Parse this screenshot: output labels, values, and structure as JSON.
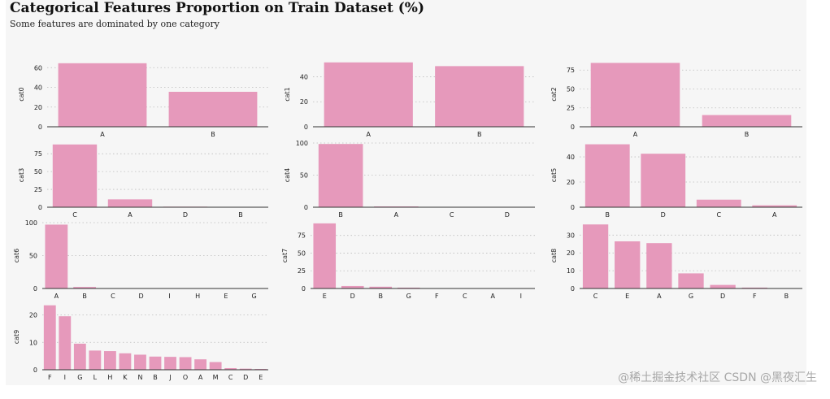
{
  "title": "Categorical Features Proportion on Train Dataset (%)",
  "subtitle": "Some features are dominated by one category",
  "watermark": "@稀土掘金技术社区 CSDN @黑夜汇生",
  "colors": {
    "bar": "#e699bb",
    "background": "#f6f6f6",
    "grid": "#bdbdbd",
    "axis": "#333333"
  },
  "chart_data": [
    {
      "type": "bar",
      "ylabel": "cat0",
      "categories": [
        "A",
        "B"
      ],
      "values": [
        64.5,
        35.5
      ],
      "ylim": [
        0,
        66
      ],
      "yticks": [
        0,
        20,
        40,
        60
      ]
    },
    {
      "type": "bar",
      "ylabel": "cat1",
      "categories": [
        "A",
        "B"
      ],
      "values": [
        51.5,
        48.5
      ],
      "ylim": [
        0,
        52
      ],
      "yticks": [
        0,
        20,
        40
      ]
    },
    {
      "type": "bar",
      "ylabel": "cat2",
      "categories": [
        "A",
        "B"
      ],
      "values": [
        84.5,
        15.5
      ],
      "ylim": [
        0,
        86
      ],
      "yticks": [
        0,
        25,
        50,
        75
      ]
    },
    {
      "type": "bar",
      "ylabel": "cat3",
      "categories": [
        "C",
        "A",
        "D",
        "B"
      ],
      "values": [
        88,
        11,
        0.8,
        0.2
      ],
      "ylim": [
        0,
        90
      ],
      "yticks": [
        0,
        25,
        50,
        75
      ]
    },
    {
      "type": "bar",
      "ylabel": "cat4",
      "categories": [
        "B",
        "A",
        "C",
        "D"
      ],
      "values": [
        98.5,
        1.2,
        0.2,
        0.1
      ],
      "ylim": [
        0,
        100
      ],
      "yticks": [
        0,
        50,
        100
      ]
    },
    {
      "type": "bar",
      "ylabel": "cat5",
      "categories": [
        "B",
        "D",
        "C",
        "A"
      ],
      "values": [
        50,
        42.5,
        6,
        1.5
      ],
      "ylim": [
        0,
        51
      ],
      "yticks": [
        0,
        20,
        40
      ]
    },
    {
      "type": "bar",
      "ylabel": "cat6",
      "categories": [
        "A",
        "B",
        "C",
        "D",
        "I",
        "H",
        "E",
        "G"
      ],
      "values": [
        97,
        2.3,
        0.3,
        0.2,
        0.1,
        0.05,
        0.03,
        0.01
      ],
      "ylim": [
        0,
        100
      ],
      "yticks": [
        0,
        50,
        100
      ]
    },
    {
      "type": "bar",
      "ylabel": "cat7",
      "categories": [
        "E",
        "D",
        "B",
        "G",
        "F",
        "C",
        "A",
        "I"
      ],
      "values": [
        92,
        3.5,
        2.5,
        1.2,
        0.4,
        0.2,
        0.1,
        0.05
      ],
      "ylim": [
        0,
        93
      ],
      "yticks": [
        0,
        25,
        50,
        75
      ]
    },
    {
      "type": "bar",
      "ylabel": "cat8",
      "categories": [
        "C",
        "E",
        "A",
        "G",
        "D",
        "F",
        "B"
      ],
      "values": [
        36,
        26.5,
        25.5,
        8.5,
        2,
        0.5,
        0.2
      ],
      "ylim": [
        0,
        37
      ],
      "yticks": [
        0,
        10,
        20,
        30
      ]
    },
    {
      "type": "bar",
      "ylabel": "cat9",
      "categories": [
        "F",
        "I",
        "G",
        "L",
        "H",
        "K",
        "N",
        "B",
        "J",
        "O",
        "A",
        "M",
        "C",
        "D",
        "E"
      ],
      "values": [
        23.5,
        19.5,
        9.5,
        7,
        6.8,
        6,
        5.5,
        4.8,
        4.7,
        4.6,
        3.8,
        2.8,
        0.6,
        0.4,
        0.3
      ],
      "ylim": [
        0,
        24
      ],
      "yticks": [
        0,
        10,
        20
      ]
    }
  ]
}
